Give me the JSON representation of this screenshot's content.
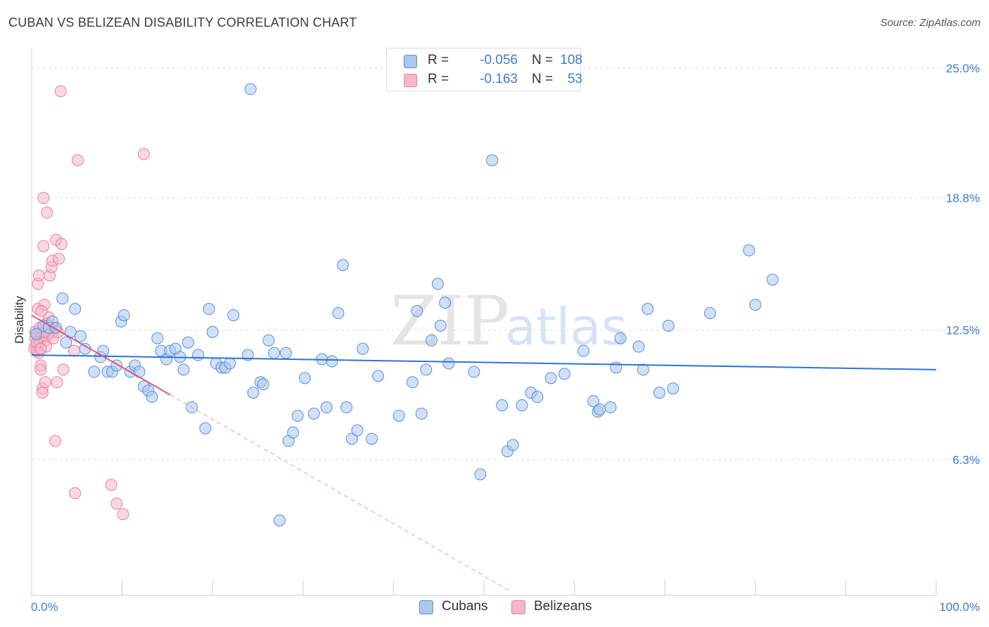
{
  "title": "CUBAN VS BELIZEAN DISABILITY CORRELATION CHART",
  "source": "Source: ZipAtlas.com",
  "watermark": {
    "zip": "ZIP",
    "atlas": "atlas"
  },
  "colors": {
    "blue_fill": "#a9c7ef",
    "blue_stroke": "#5b8fd6",
    "blue_line": "#2f73d0",
    "pink_fill": "#f6b6c9",
    "pink_stroke": "#e87fa0",
    "pink_line": "#e0557f",
    "grid": "#dddddd",
    "axis_text": "#3f7bd0"
  },
  "legend_top": [
    {
      "r_label": "R =",
      "r_value": "-0.056",
      "n_label": "N =",
      "n_value": "108",
      "swatch": "blue"
    },
    {
      "r_label": "R =",
      "r_value": "-0.163",
      "n_label": "N =",
      "n_value": "53",
      "swatch": "pink"
    }
  ],
  "legend_bottom": [
    {
      "label": "Cubans",
      "swatch": "blue"
    },
    {
      "label": "Belizeans",
      "swatch": "pink"
    }
  ],
  "chart_data": {
    "type": "scatter",
    "title": "CUBAN VS BELIZEAN DISABILITY CORRELATION CHART",
    "xlabel": "",
    "ylabel": "Disability",
    "xlim": [
      0,
      100
    ],
    "ylim": [
      0,
      26
    ],
    "x_tick_labels": [
      {
        "value": 0,
        "label": "0.0%"
      },
      {
        "value": 100,
        "label": "100.0%"
      }
    ],
    "y_tick_labels": [
      {
        "value": 6.3,
        "label": "6.3%"
      },
      {
        "value": 12.5,
        "label": "12.5%"
      },
      {
        "value": 18.8,
        "label": "18.8%"
      },
      {
        "value": 25.0,
        "label": "25.0%"
      }
    ],
    "x_minor_ticks": [
      10,
      20,
      30,
      40,
      50,
      60,
      70,
      80,
      90,
      100
    ],
    "series": [
      {
        "name": "Cubans",
        "color": "blue",
        "trend": {
          "x0": 0,
          "y0": 11.3,
          "x1": 100,
          "y1": 10.6
        },
        "points": [
          [
            0.5,
            12.3
          ],
          [
            1.3,
            12.7
          ],
          [
            1.9,
            12.6
          ],
          [
            2.3,
            12.9
          ],
          [
            2.7,
            12.6
          ],
          [
            3.4,
            14.0
          ],
          [
            3.8,
            11.9
          ],
          [
            4.3,
            12.4
          ],
          [
            4.8,
            13.5
          ],
          [
            5.4,
            12.2
          ],
          [
            5.9,
            11.6
          ],
          [
            6.9,
            10.5
          ],
          [
            7.6,
            11.2
          ],
          [
            7.9,
            11.5
          ],
          [
            8.4,
            10.5
          ],
          [
            8.9,
            10.5
          ],
          [
            9.4,
            10.8
          ],
          [
            9.9,
            12.9
          ],
          [
            10.2,
            13.2
          ],
          [
            10.9,
            10.5
          ],
          [
            11.4,
            10.8
          ],
          [
            11.9,
            10.5
          ],
          [
            12.4,
            9.8
          ],
          [
            12.9,
            9.6
          ],
          [
            13.3,
            9.3
          ],
          [
            13.9,
            12.1
          ],
          [
            14.3,
            11.5
          ],
          [
            14.9,
            11.1
          ],
          [
            15.3,
            11.5
          ],
          [
            15.9,
            11.6
          ],
          [
            16.4,
            11.2
          ],
          [
            16.8,
            10.6
          ],
          [
            17.3,
            11.9
          ],
          [
            17.7,
            8.8
          ],
          [
            18.4,
            11.3
          ],
          [
            19.2,
            7.8
          ],
          [
            19.6,
            13.5
          ],
          [
            20.0,
            12.4
          ],
          [
            20.4,
            10.9
          ],
          [
            21.0,
            10.7
          ],
          [
            21.4,
            10.7
          ],
          [
            21.9,
            10.9
          ],
          [
            22.3,
            13.2
          ],
          [
            23.9,
            11.3
          ],
          [
            24.2,
            24.0
          ],
          [
            24.5,
            9.5
          ],
          [
            25.3,
            10.0
          ],
          [
            25.6,
            9.9
          ],
          [
            26.2,
            12.0
          ],
          [
            26.8,
            11.4
          ],
          [
            27.4,
            3.4
          ],
          [
            28.1,
            11.4
          ],
          [
            28.4,
            7.2
          ],
          [
            28.9,
            7.6
          ],
          [
            29.4,
            8.4
          ],
          [
            30.2,
            10.2
          ],
          [
            31.2,
            8.5
          ],
          [
            32.1,
            11.1
          ],
          [
            32.6,
            8.8
          ],
          [
            33.2,
            11.0
          ],
          [
            33.9,
            13.3
          ],
          [
            34.4,
            15.6
          ],
          [
            34.8,
            8.8
          ],
          [
            35.4,
            7.3
          ],
          [
            36.0,
            7.7
          ],
          [
            36.6,
            11.6
          ],
          [
            37.6,
            7.3
          ],
          [
            38.3,
            10.3
          ],
          [
            40.6,
            8.4
          ],
          [
            42.1,
            10.0
          ],
          [
            42.6,
            13.4
          ],
          [
            43.1,
            8.5
          ],
          [
            43.6,
            10.6
          ],
          [
            44.2,
            12.0
          ],
          [
            44.9,
            14.7
          ],
          [
            45.2,
            12.7
          ],
          [
            45.7,
            13.8
          ],
          [
            46.1,
            10.9
          ],
          [
            48.9,
            10.5
          ],
          [
            49.6,
            5.6
          ],
          [
            50.9,
            20.6
          ],
          [
            52.0,
            8.9
          ],
          [
            52.6,
            6.7
          ],
          [
            53.2,
            7.0
          ],
          [
            54.2,
            8.9
          ],
          [
            55.2,
            9.5
          ],
          [
            55.9,
            9.3
          ],
          [
            57.4,
            10.2
          ],
          [
            58.9,
            10.4
          ],
          [
            61.0,
            11.5
          ],
          [
            62.1,
            9.1
          ],
          [
            62.6,
            8.6
          ],
          [
            62.8,
            8.7
          ],
          [
            64.0,
            8.8
          ],
          [
            64.6,
            10.7
          ],
          [
            65.1,
            12.1
          ],
          [
            67.1,
            11.7
          ],
          [
            67.6,
            10.6
          ],
          [
            68.1,
            13.5
          ],
          [
            69.4,
            9.5
          ],
          [
            70.4,
            12.7
          ],
          [
            70.9,
            9.7
          ],
          [
            75.0,
            13.3
          ],
          [
            79.3,
            16.3
          ],
          [
            80.0,
            13.7
          ],
          [
            81.9,
            14.9
          ]
        ]
      },
      {
        "name": "Belizeans",
        "color": "pink",
        "trend": {
          "x0": 0,
          "y0": 13.2,
          "x1": 15.3,
          "y1": 9.4
        },
        "trend_dashed": {
          "x0": 15.3,
          "y0": 9.4,
          "x1": 53.0,
          "y1": 0.0
        },
        "points": [
          [
            0.3,
            11.6
          ],
          [
            0.4,
            12.1
          ],
          [
            0.5,
            11.8
          ],
          [
            0.6,
            11.5
          ],
          [
            0.7,
            13.5
          ],
          [
            0.7,
            14.7
          ],
          [
            0.8,
            15.1
          ],
          [
            0.8,
            12.3
          ],
          [
            0.9,
            11.9
          ],
          [
            1.0,
            10.8
          ],
          [
            1.0,
            10.6
          ],
          [
            1.1,
            12.2
          ],
          [
            1.2,
            9.7
          ],
          [
            1.2,
            9.5
          ],
          [
            1.3,
            16.5
          ],
          [
            1.3,
            18.8
          ],
          [
            1.4,
            13.7
          ],
          [
            1.5,
            12.0
          ],
          [
            1.5,
            10.0
          ],
          [
            1.6,
            11.7
          ],
          [
            1.7,
            18.1
          ],
          [
            1.8,
            12.7
          ],
          [
            1.9,
            13.1
          ],
          [
            1.9,
            12.3
          ],
          [
            2.0,
            15.1
          ],
          [
            2.1,
            12.4
          ],
          [
            2.2,
            15.5
          ],
          [
            2.3,
            15.8
          ],
          [
            2.4,
            12.1
          ],
          [
            2.5,
            12.6
          ],
          [
            2.6,
            7.2
          ],
          [
            2.7,
            16.8
          ],
          [
            2.8,
            10.0
          ],
          [
            2.9,
            12.4
          ],
          [
            3.0,
            15.9
          ],
          [
            3.3,
            16.6
          ],
          [
            3.2,
            23.9
          ],
          [
            3.5,
            10.6
          ],
          [
            4.7,
            11.5
          ],
          [
            5.1,
            20.6
          ],
          [
            8.8,
            5.1
          ],
          [
            9.4,
            4.2
          ],
          [
            10.1,
            3.7
          ],
          [
            12.4,
            20.9
          ],
          [
            4.8,
            4.7
          ],
          [
            0.6,
            11.9
          ],
          [
            0.9,
            12.6
          ],
          [
            1.1,
            13.4
          ],
          [
            1.4,
            12.4
          ],
          [
            1.6,
            12.8
          ],
          [
            0.4,
            12.4
          ],
          [
            0.8,
            11.4
          ],
          [
            1.0,
            11.6
          ]
        ]
      }
    ]
  }
}
